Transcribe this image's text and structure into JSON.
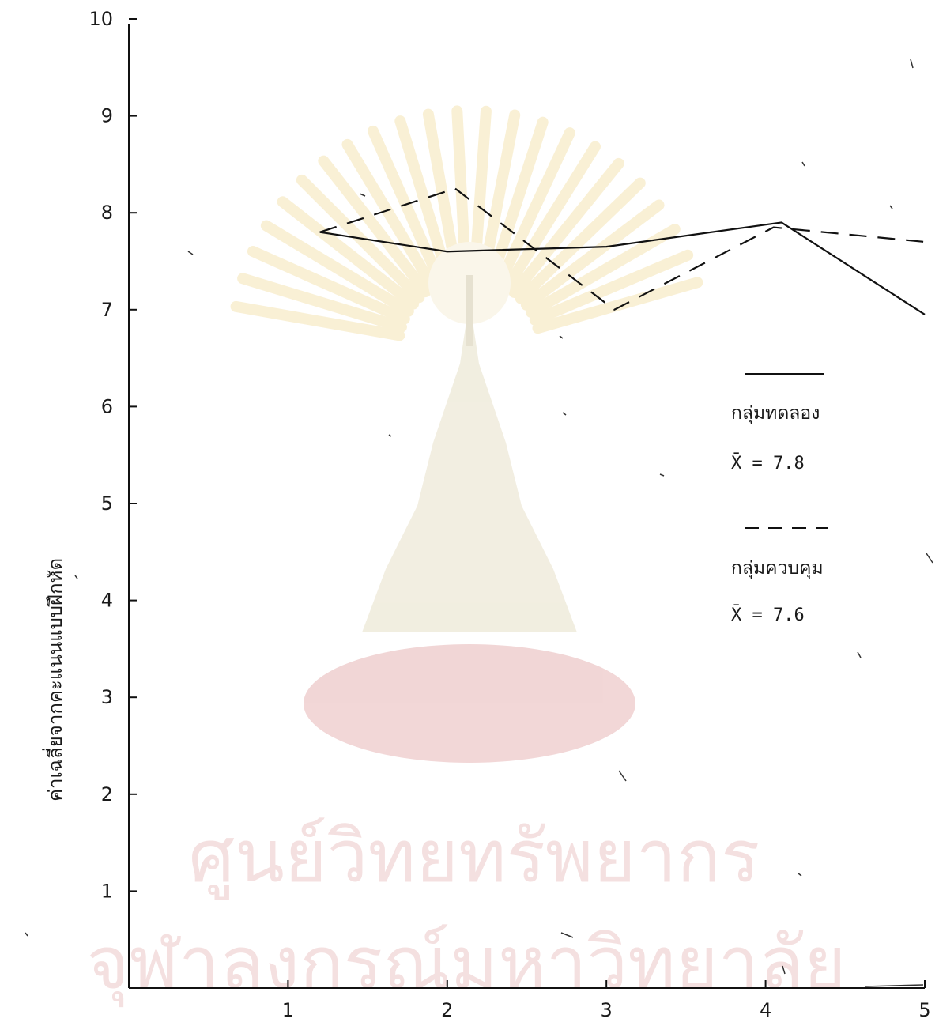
{
  "chart_data": {
    "type": "line",
    "ylabel": "ค่าเฉลี่ยจากคะแนนแบบฝึกหัด",
    "xlabel": "",
    "x_ticks": [
      "1",
      "2",
      "3",
      "4",
      "5"
    ],
    "y_ticks": [
      "1",
      "2",
      "3",
      "4",
      "5",
      "6",
      "7",
      "8",
      "9",
      "10"
    ],
    "ylim": [
      0,
      10
    ],
    "xlim": [
      0,
      5
    ],
    "series": [
      {
        "name": "กลุ่มทดลอง",
        "style": "solid",
        "x": [
          1.2,
          2.0,
          3.0,
          4.1,
          5.0
        ],
        "y": [
          7.8,
          7.6,
          7.65,
          7.9,
          6.95
        ]
      },
      {
        "name": "กลุ่มควบคุม",
        "style": "dashed",
        "x": [
          1.2,
          2.05,
          3.05,
          4.05,
          5.0
        ],
        "y": [
          7.8,
          8.25,
          7.0,
          7.85,
          7.7
        ]
      }
    ],
    "legend": [
      {
        "label": "กลุ่มทดลอง",
        "mean": "X̄ = 7.8",
        "style": "solid"
      },
      {
        "label": "กลุ่มควบคุม",
        "mean": "X̄ = 7.6",
        "style": "dashed"
      }
    ],
    "legend_position": "right",
    "grid": false
  },
  "watermark": {
    "line1": "ศูนย์วิทยทรัพยากร",
    "line2": "จุฬาลงกรณ์มหาวิทยาลัย",
    "color": "#e8b7b7"
  }
}
